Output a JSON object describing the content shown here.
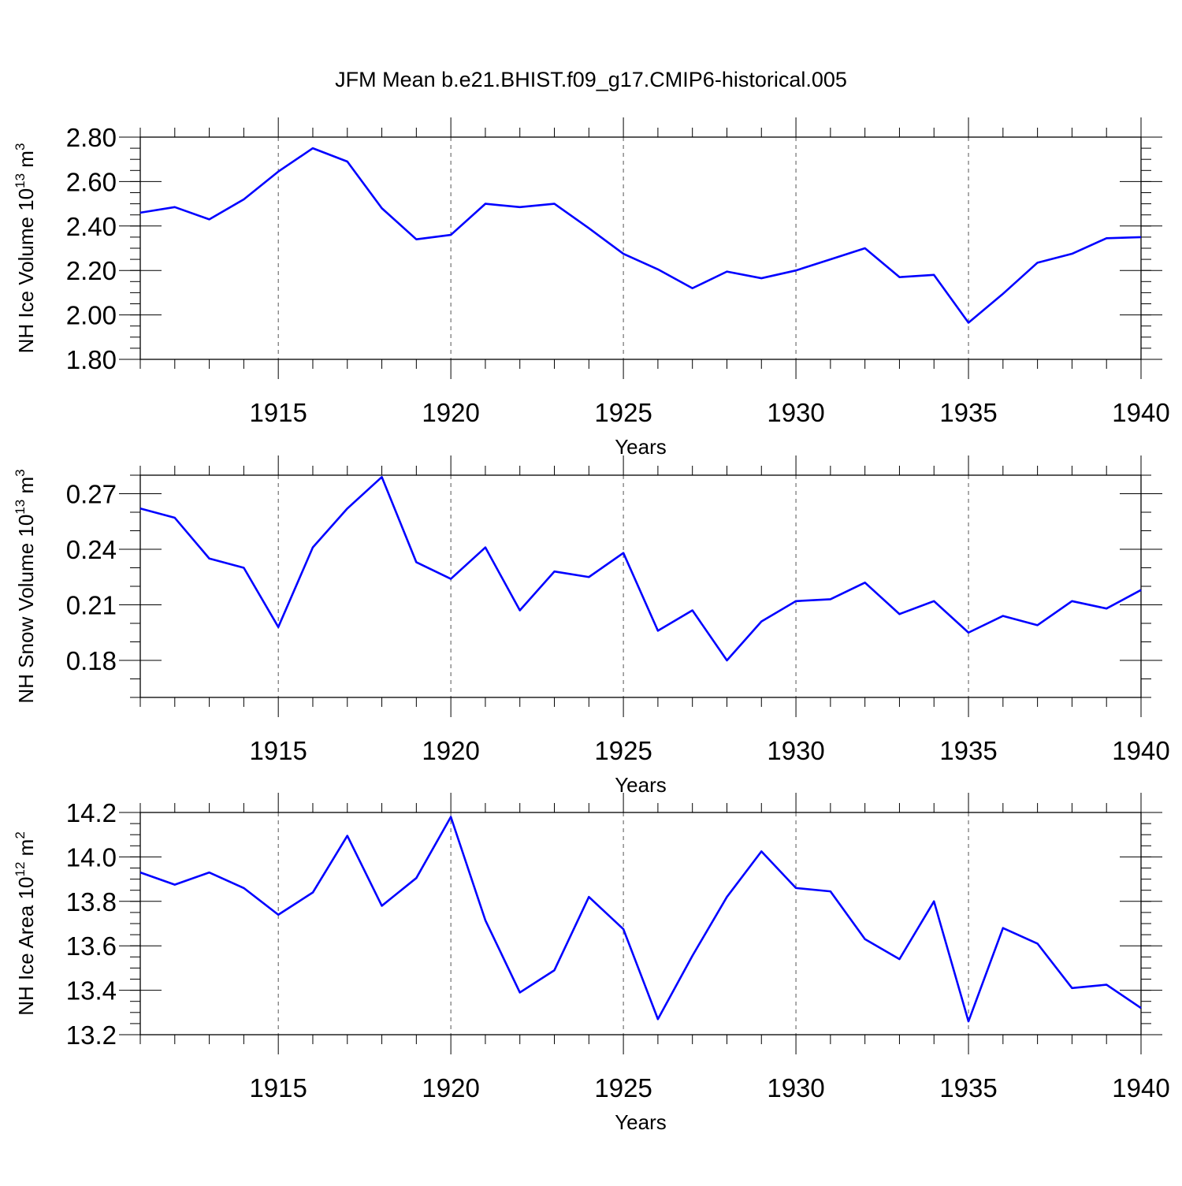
{
  "figure_title": "JFM Mean b.e21.BHIST.f09_g17.CMIP6-historical.005",
  "colors": {
    "line": "#0000ff",
    "axis": "#000000",
    "grid": "#555555"
  },
  "chart_data": [
    {
      "type": "line",
      "ylabel_main": "NH Ice Volume 10",
      "ylabel_exp": "13",
      "ylabel_unit": " m",
      "ylabel_unit_exp": "3",
      "xlabel": "Years",
      "xlim": [
        1911,
        1940
      ],
      "ylim": [
        1.8,
        2.8
      ],
      "x_ticks": [
        1915,
        1920,
        1925,
        1930,
        1935,
        1940
      ],
      "x_tick_labels": [
        "1915",
        "1920",
        "1925",
        "1930",
        "1935",
        "1940"
      ],
      "y_ticks": [
        1.8,
        2.0,
        2.2,
        2.4,
        2.6,
        2.8
      ],
      "y_tick_labels": [
        "1.80",
        "2.00",
        "2.20",
        "2.40",
        "2.60",
        "2.80"
      ],
      "y_minor_step": 0.05,
      "grid": "vertical dashed at major x ticks",
      "series": [
        {
          "name": "NH Ice Volume",
          "x": [
            1911,
            1912,
            1913,
            1914,
            1915,
            1916,
            1917,
            1918,
            1919,
            1920,
            1921,
            1922,
            1923,
            1924,
            1925,
            1926,
            1927,
            1928,
            1929,
            1930,
            1931,
            1932,
            1933,
            1934,
            1935,
            1936,
            1937,
            1938,
            1939,
            1940
          ],
          "values": [
            2.46,
            2.485,
            2.43,
            2.52,
            2.645,
            2.75,
            2.69,
            2.48,
            2.34,
            2.36,
            2.5,
            2.485,
            2.5,
            2.39,
            2.275,
            2.205,
            2.12,
            2.195,
            2.165,
            2.2,
            2.25,
            2.3,
            2.17,
            2.18,
            1.965,
            2.095,
            2.235,
            2.275,
            2.345,
            2.35
          ]
        }
      ]
    },
    {
      "type": "line",
      "ylabel_main": "NH Snow Volume 10",
      "ylabel_exp": "13",
      "ylabel_unit": " m",
      "ylabel_unit_exp": "3",
      "xlabel": "Years",
      "xlim": [
        1911,
        1940
      ],
      "ylim": [
        0.16,
        0.28
      ],
      "x_ticks": [
        1915,
        1920,
        1925,
        1930,
        1935,
        1940
      ],
      "x_tick_labels": [
        "1915",
        "1920",
        "1925",
        "1930",
        "1935",
        "1940"
      ],
      "y_ticks": [
        0.18,
        0.21,
        0.24,
        0.27
      ],
      "y_tick_labels": [
        "0.18",
        "0.21",
        "0.24",
        "0.27"
      ],
      "y_minor_step": 0.01,
      "grid": "vertical dashed at major x ticks",
      "series": [
        {
          "name": "NH Snow Volume",
          "x": [
            1911,
            1912,
            1913,
            1914,
            1915,
            1916,
            1917,
            1918,
            1919,
            1920,
            1921,
            1922,
            1923,
            1924,
            1925,
            1926,
            1927,
            1928,
            1929,
            1930,
            1931,
            1932,
            1933,
            1934,
            1935,
            1936,
            1937,
            1938,
            1939,
            1940
          ],
          "values": [
            0.262,
            0.257,
            0.235,
            0.23,
            0.198,
            0.241,
            0.262,
            0.279,
            0.233,
            0.224,
            0.241,
            0.207,
            0.228,
            0.225,
            0.238,
            0.196,
            0.207,
            0.18,
            0.201,
            0.212,
            0.213,
            0.222,
            0.205,
            0.212,
            0.195,
            0.204,
            0.199,
            0.212,
            0.208,
            0.218
          ]
        }
      ]
    },
    {
      "type": "line",
      "ylabel_main": "NH Ice Area 10",
      "ylabel_exp": "12",
      "ylabel_unit": " m",
      "ylabel_unit_exp": "2",
      "xlabel": "Years",
      "xlim": [
        1911,
        1940
      ],
      "ylim": [
        13.2,
        14.2
      ],
      "x_ticks": [
        1915,
        1920,
        1925,
        1930,
        1935,
        1940
      ],
      "x_tick_labels": [
        "1915",
        "1920",
        "1925",
        "1930",
        "1935",
        "1940"
      ],
      "y_ticks": [
        13.2,
        13.4,
        13.6,
        13.8,
        14.0,
        14.2
      ],
      "y_tick_labels": [
        "13.2",
        "13.4",
        "13.6",
        "13.8",
        "14.0",
        "14.2"
      ],
      "y_minor_step": 0.05,
      "grid": "vertical dashed at major x ticks",
      "series": [
        {
          "name": "NH Ice Area",
          "x": [
            1911,
            1912,
            1913,
            1914,
            1915,
            1916,
            1917,
            1918,
            1919,
            1920,
            1921,
            1922,
            1923,
            1924,
            1925,
            1926,
            1927,
            1928,
            1929,
            1930,
            1931,
            1932,
            1933,
            1934,
            1935,
            1936,
            1937,
            1938,
            1939,
            1940
          ],
          "values": [
            13.93,
            13.875,
            13.93,
            13.86,
            13.74,
            13.84,
            14.095,
            13.78,
            13.905,
            14.18,
            13.715,
            13.39,
            13.49,
            13.82,
            13.675,
            13.27,
            13.555,
            13.82,
            14.025,
            13.86,
            13.845,
            13.63,
            13.54,
            13.8,
            13.26,
            13.68,
            13.61,
            13.41,
            13.425,
            13.32
          ]
        }
      ]
    }
  ]
}
